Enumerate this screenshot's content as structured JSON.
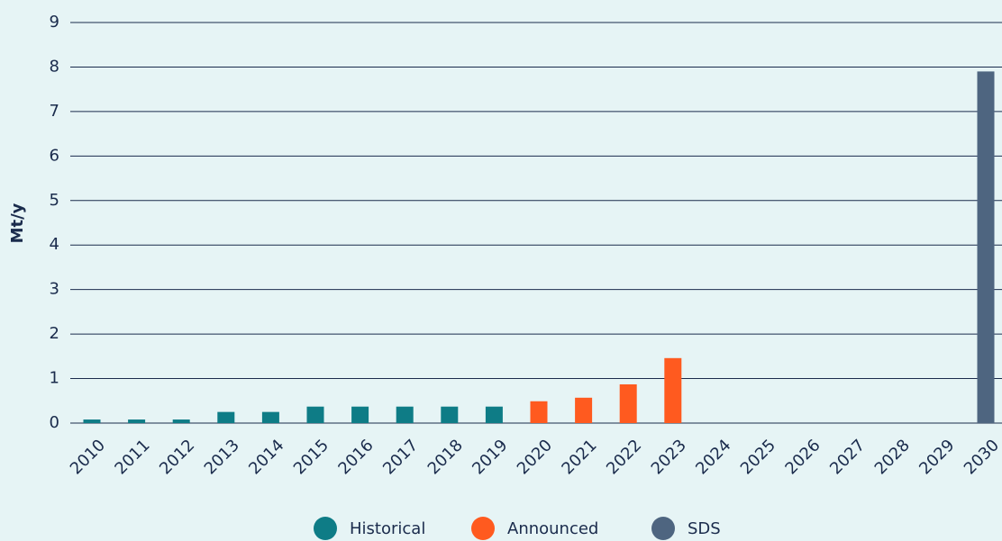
{
  "chart_data": {
    "type": "bar",
    "y_label": "Mt/y",
    "categories": [
      "2010",
      "2011",
      "2012",
      "2013",
      "2014",
      "2015",
      "2016",
      "2017",
      "2018",
      "2019",
      "2020",
      "2021",
      "2022",
      "2023",
      "2024",
      "2025",
      "2026",
      "2027",
      "2028",
      "2029",
      "2030"
    ],
    "series": [
      {
        "name": "Historical",
        "color": "#0e7c86",
        "values": [
          0.08,
          0.08,
          0.08,
          0.25,
          0.25,
          0.37,
          0.37,
          0.37,
          0.37,
          0.37,
          null,
          null,
          null,
          null,
          null,
          null,
          null,
          null,
          null,
          null,
          null
        ]
      },
      {
        "name": "Announced",
        "color": "#ff5a1f",
        "values": [
          null,
          null,
          null,
          null,
          null,
          null,
          null,
          null,
          null,
          null,
          0.49,
          0.57,
          0.87,
          1.46,
          null,
          null,
          null,
          null,
          null,
          null,
          null
        ]
      },
      {
        "name": "SDS",
        "color": "#4e6580",
        "values": [
          null,
          null,
          null,
          null,
          null,
          null,
          null,
          null,
          null,
          null,
          null,
          null,
          null,
          null,
          null,
          null,
          null,
          null,
          null,
          null,
          7.9
        ]
      }
    ],
    "ylim": [
      0,
      9
    ],
    "yticks": [
      0,
      1,
      2,
      3,
      4,
      5,
      6,
      7,
      8,
      9
    ],
    "grid": true,
    "legend": "bottom"
  }
}
